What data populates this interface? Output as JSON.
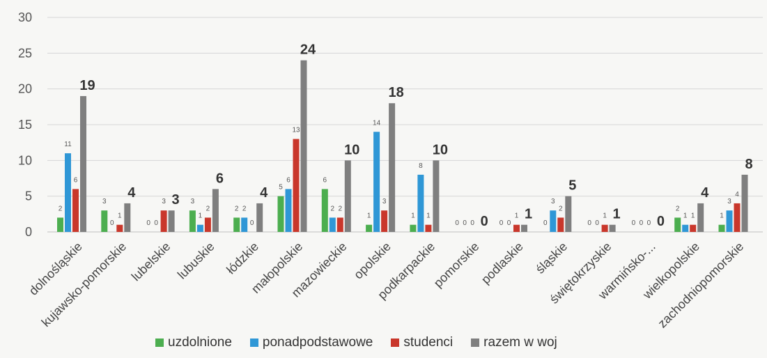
{
  "chart_data": {
    "type": "bar",
    "title": "",
    "xlabel": "",
    "ylabel": "",
    "ylim": [
      0,
      30
    ],
    "yticks": [
      0,
      5,
      10,
      15,
      20,
      25,
      30
    ],
    "grid": true,
    "legend_position": "bottom",
    "categories": [
      "dolnośląskie",
      "kujawsko-pomorskie",
      "lubelskie",
      "lubuskie",
      "łódzkie",
      "małopolskie",
      "mazowieckie",
      "opolskie",
      "podkarpackie",
      "pomorskie",
      "podlaskie",
      "śląskie",
      "świętokrzyskie",
      "warmińsko-...",
      "wielkopolskie",
      "zachodniopomorskie"
    ],
    "series": [
      {
        "name": "uzdolnione",
        "color": "#4cae4f",
        "values": [
          2,
          3,
          0,
          3,
          2,
          5,
          6,
          1,
          1,
          0,
          0,
          0,
          0,
          0,
          2,
          1
        ]
      },
      {
        "name": "ponadpodstawowe",
        "color": "#2f97d6",
        "values": [
          11,
          0,
          0,
          1,
          2,
          6,
          2,
          14,
          8,
          0,
          0,
          3,
          0,
          0,
          1,
          3
        ]
      },
      {
        "name": "studenci",
        "color": "#c9372b",
        "values": [
          6,
          1,
          3,
          2,
          0,
          13,
          2,
          3,
          1,
          0,
          1,
          2,
          1,
          0,
          1,
          4
        ]
      },
      {
        "name": "razem w woj",
        "color": "#7f7f7f",
        "values": [
          19,
          4,
          3,
          6,
          4,
          24,
          10,
          18,
          10,
          0,
          1,
          5,
          1,
          0,
          4,
          8
        ]
      }
    ],
    "legend_labels": [
      "uzdolnione",
      "ponadpodstawowe",
      "studenci",
      "razem w woj"
    ]
  }
}
